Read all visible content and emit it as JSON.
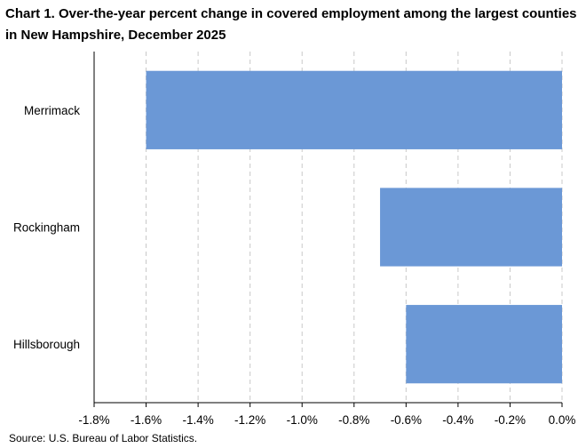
{
  "chart_data": {
    "type": "bar",
    "orientation": "horizontal",
    "title": "Chart 1. Over-the-year percent change in covered employment among the largest counties in New Hampshire, December 2025",
    "categories": [
      "Merrimack",
      "Rockingham",
      "Hillsborough"
    ],
    "values": [
      -1.6,
      -0.7,
      -0.6
    ],
    "xlim": [
      -1.8,
      0.0
    ],
    "xticks": [
      -1.8,
      -1.6,
      -1.4,
      -1.2,
      -1.0,
      -0.8,
      -0.6,
      -0.4,
      -0.2,
      0.0
    ],
    "xtick_labels": [
      "-1.8%",
      "-1.6%",
      "-1.4%",
      "-1.2%",
      "-1.0%",
      "-0.8%",
      "-0.6%",
      "-0.4%",
      "-0.2%",
      "0.0%"
    ],
    "grid": true,
    "legend": "none",
    "source": "Source: U.S. Bureau of Labor Statistics.",
    "colors": {
      "bar": "#6b98d6",
      "gridline": "#c8c8c8",
      "axis": "#000000"
    }
  }
}
